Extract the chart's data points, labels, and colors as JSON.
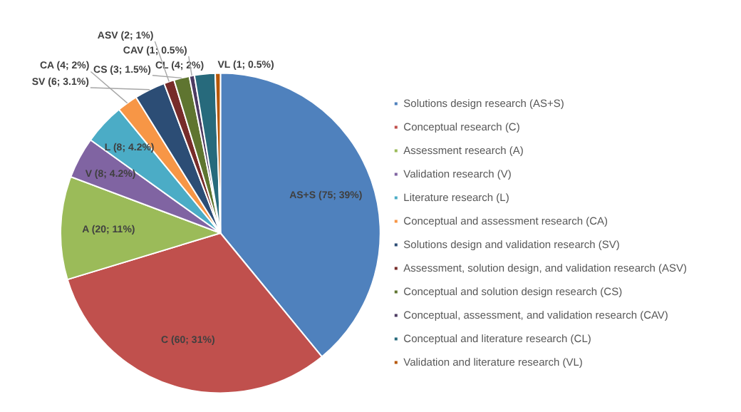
{
  "chart_data": {
    "type": "pie",
    "categories": [
      "Solutions design research (AS+S)",
      "Conceptual research (C)",
      "Assessment research (A)",
      "Validation research (V)",
      "Literature research (L)",
      "Conceptual and assessment research (CA)",
      "Solutions design and validation research (SV)",
      "Assessment, solution design, and validation research (ASV)",
      "Conceptual and solution design research (CS)",
      "Conceptual, assessment, and validation research (CAV)",
      "Conceptual and literature research (CL)",
      "Validation and literature research (VL)"
    ],
    "values": [
      75,
      60,
      20,
      8,
      8,
      4,
      6,
      2,
      3,
      1,
      4,
      1
    ],
    "colors": [
      "#4f81bd",
      "#c0504d",
      "#9bbb59",
      "#8064a2",
      "#4bacc6",
      "#f79646",
      "#2c4d75",
      "#772c2a",
      "#5f7530",
      "#4d3b62",
      "#276a7c",
      "#b65708"
    ],
    "value_labels": [
      "AS+S (75; 39%)",
      "C (60; 31%)",
      "A (20; 11%)",
      "V (8; 4.2%)",
      "L (8; 4.2%)",
      "CA (4; 2%)",
      "SV (6; 3.1%)",
      "ASV (2; 1%)",
      "CS (3; 1.5%)",
      "CAV (1; 0.5%)",
      "CL (4; 2%)",
      "VL (1; 0.5%)"
    ],
    "legend": "right"
  }
}
